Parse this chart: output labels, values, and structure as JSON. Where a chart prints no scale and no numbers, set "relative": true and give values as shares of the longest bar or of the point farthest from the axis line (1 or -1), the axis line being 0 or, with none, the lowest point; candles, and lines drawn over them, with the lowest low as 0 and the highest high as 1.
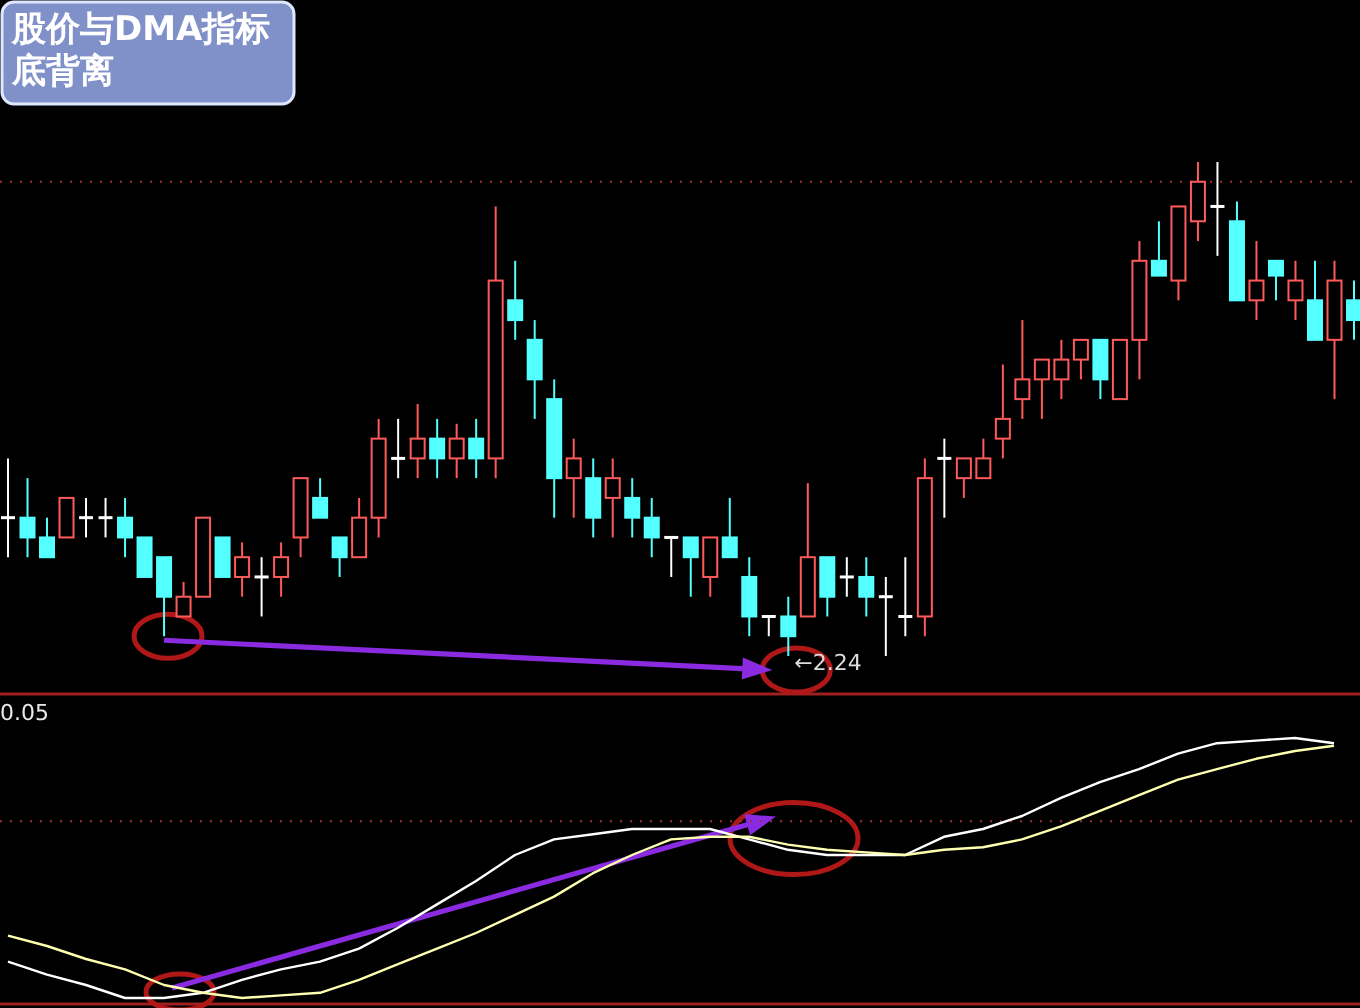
{
  "chart_data": [
    {
      "type": "candlestick",
      "title": "股价与DMA指标底背离",
      "relative": true,
      "categories": [
        null,
        null,
        null,
        null,
        null,
        null,
        null,
        null,
        null,
        null,
        null,
        null,
        null,
        null,
        null,
        null,
        null,
        null,
        null,
        null,
        null,
        null,
        null,
        null,
        null,
        null,
        null,
        null,
        null,
        null,
        null,
        null,
        null,
        null,
        null,
        null,
        null,
        null,
        null,
        null,
        null,
        null,
        null,
        null,
        null,
        null,
        null,
        null,
        null,
        null,
        null,
        null,
        null,
        null,
        null,
        null,
        null,
        null,
        null,
        null,
        null,
        null,
        null,
        null,
        null,
        null,
        null,
        null,
        null,
        null
      ],
      "ohlc": [
        [
          0.28,
          0.4,
          0.2,
          0.28
        ],
        [
          0.28,
          0.36,
          0.2,
          0.24
        ],
        [
          0.24,
          0.28,
          0.2,
          0.2
        ],
        [
          0.24,
          0.32,
          0.24,
          0.32
        ],
        [
          0.28,
          0.32,
          0.24,
          0.28
        ],
        [
          0.28,
          0.32,
          0.24,
          0.28
        ],
        [
          0.28,
          0.32,
          0.2,
          0.24
        ],
        [
          0.24,
          0.24,
          0.16,
          0.16
        ],
        [
          0.2,
          0.2,
          0.04,
          0.12
        ],
        [
          0.08,
          0.15,
          0.08,
          0.12
        ],
        [
          0.12,
          0.28,
          0.12,
          0.28
        ],
        [
          0.24,
          0.24,
          0.16,
          0.16
        ],
        [
          0.16,
          0.23,
          0.12,
          0.2
        ],
        [
          0.16,
          0.2,
          0.08,
          0.16
        ],
        [
          0.16,
          0.23,
          0.12,
          0.2
        ],
        [
          0.24,
          0.36,
          0.2,
          0.36
        ],
        [
          0.32,
          0.36,
          0.28,
          0.28
        ],
        [
          0.24,
          0.24,
          0.16,
          0.2
        ],
        [
          0.2,
          0.32,
          0.2,
          0.28
        ],
        [
          0.28,
          0.48,
          0.24,
          0.44
        ],
        [
          0.4,
          0.48,
          0.36,
          0.4
        ],
        [
          0.4,
          0.51,
          0.36,
          0.44
        ],
        [
          0.44,
          0.48,
          0.36,
          0.4
        ],
        [
          0.4,
          0.47,
          0.36,
          0.44
        ],
        [
          0.44,
          0.48,
          0.36,
          0.4
        ],
        [
          0.4,
          0.91,
          0.36,
          0.76
        ],
        [
          0.72,
          0.8,
          0.64,
          0.68
        ],
        [
          0.64,
          0.68,
          0.48,
          0.56
        ],
        [
          0.52,
          0.56,
          0.28,
          0.36
        ],
        [
          0.36,
          0.44,
          0.28,
          0.4
        ],
        [
          0.36,
          0.4,
          0.24,
          0.28
        ],
        [
          0.32,
          0.4,
          0.24,
          0.36
        ],
        [
          0.32,
          0.36,
          0.24,
          0.28
        ],
        [
          0.28,
          0.32,
          0.2,
          0.24
        ],
        [
          0.24,
          0.24,
          0.16,
          0.24
        ],
        [
          0.24,
          0.24,
          0.12,
          0.2
        ],
        [
          0.16,
          0.24,
          0.12,
          0.24
        ],
        [
          0.24,
          0.32,
          0.2,
          0.2
        ],
        [
          0.16,
          0.2,
          0.04,
          0.08
        ],
        [
          0.08,
          0.08,
          0.04,
          0.08
        ],
        [
          0.08,
          0.12,
          0,
          0.04
        ],
        [
          0.08,
          0.35,
          0.08,
          0.2
        ],
        [
          0.2,
          0.2,
          0.08,
          0.12
        ],
        [
          0.16,
          0.2,
          0.12,
          0.16
        ],
        [
          0.16,
          0.2,
          0.08,
          0.12
        ],
        [
          0.12,
          0.16,
          0,
          0.12
        ],
        [
          0.08,
          0.2,
          0.04,
          0.08
        ],
        [
          0.08,
          0.4,
          0.04,
          0.36
        ],
        [
          0.4,
          0.44,
          0.28,
          0.4
        ],
        [
          0.36,
          0.4,
          0.32,
          0.4
        ],
        [
          0.36,
          0.44,
          0.36,
          0.4
        ],
        [
          0.44,
          0.59,
          0.4,
          0.48
        ],
        [
          0.52,
          0.68,
          0.48,
          0.56
        ],
        [
          0.56,
          0.6,
          0.48,
          0.6
        ],
        [
          0.56,
          0.64,
          0.52,
          0.6
        ],
        [
          0.6,
          0.64,
          0.56,
          0.64
        ],
        [
          0.64,
          0.64,
          0.52,
          0.56
        ],
        [
          0.52,
          0.64,
          0.52,
          0.64
        ],
        [
          0.64,
          0.84,
          0.56,
          0.8
        ],
        [
          0.8,
          0.88,
          0.77,
          0.77
        ],
        [
          0.76,
          0.91,
          0.72,
          0.91
        ],
        [
          0.88,
          1.0,
          0.84,
          0.96
        ],
        [
          0.91,
          1.0,
          0.81,
          0.91
        ],
        [
          0.88,
          0.92,
          0.72,
          0.72
        ],
        [
          0.72,
          0.84,
          0.68,
          0.76
        ],
        [
          0.8,
          0.8,
          0.72,
          0.77
        ],
        [
          0.72,
          0.8,
          0.68,
          0.76
        ],
        [
          0.72,
          0.8,
          0.64,
          0.64
        ],
        [
          0.64,
          0.8,
          0.52,
          0.76
        ],
        [
          0.72,
          0.76,
          0.64,
          0.68
        ]
      ],
      "ref_lines": [
        {
          "axis": "y",
          "value": 0.96,
          "color": "#a03030",
          "line_style": "dotted"
        }
      ],
      "annotations": [
        "←2.24"
      ]
    },
    {
      "type": "line",
      "relative": true,
      "categories": [
        null,
        null,
        null,
        null,
        null,
        null,
        null,
        null,
        null,
        null,
        null,
        null,
        null,
        null,
        null,
        null,
        null,
        null,
        null,
        null,
        null,
        null,
        null,
        null,
        null,
        null,
        null,
        null,
        null,
        null,
        null,
        null,
        null,
        null,
        null
      ],
      "series": [
        {
          "color": "#ffffff",
          "values": [
            0.14,
            0.09,
            0.05,
            0,
            0,
            0.02,
            0.07,
            0.11,
            0.14,
            0.19,
            0.27,
            0.36,
            0.45,
            0.55,
            0.61,
            0.63,
            0.65,
            0.65,
            0.65,
            0.61,
            0.57,
            0.55,
            0.55,
            0.55,
            0.62,
            0.65,
            0.7,
            0.77,
            0.83,
            0.88,
            0.94,
            0.98,
            0.99,
            1,
            0.98
          ]
        },
        {
          "color": "#ffffb0",
          "values": [
            0.24,
            0.2,
            0.15,
            0.11,
            0.05,
            0.02,
            0,
            0.01,
            0.02,
            0.07,
            0.13,
            0.19,
            0.25,
            0.32,
            0.39,
            0.48,
            0.55,
            0.61,
            0.62,
            0.62,
            0.59,
            0.57,
            0.56,
            0.55,
            0.57,
            0.58,
            0.61,
            0.66,
            0.72,
            0.78,
            0.84,
            0.88,
            0.92,
            0.95,
            0.97
          ]
        }
      ],
      "ref_lines": [
        {
          "axis": "y",
          "value": 0.68,
          "color": "#a03030",
          "line_style": "dotted"
        }
      ],
      "annotations": [
        "0.05"
      ]
    }
  ]
}
